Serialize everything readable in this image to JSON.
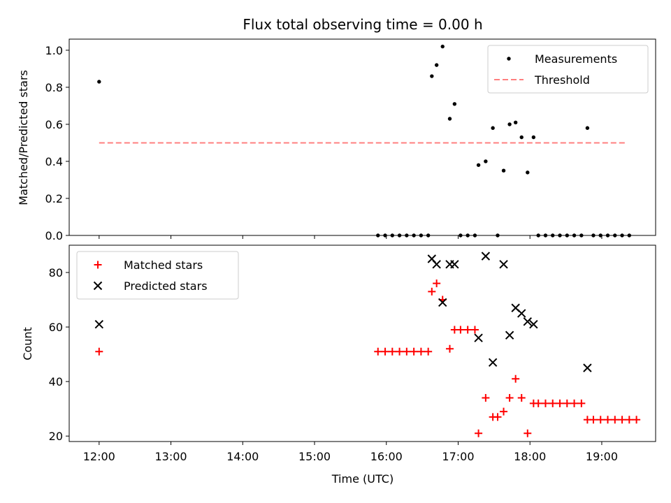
{
  "chart_data": [
    {
      "type": "scatter",
      "title": "Flux total observing time = 0.00 h",
      "xlabel": "",
      "ylabel": "Matched/Predicted stars",
      "ylim": [
        0,
        1.06
      ],
      "yticks": [
        0.0,
        0.2,
        0.4,
        0.6,
        0.8,
        1.0
      ],
      "ytick_labels": [
        "0.0",
        "0.2",
        "0.4",
        "0.6",
        "0.8",
        "1.0"
      ],
      "legend_placement": "top-right",
      "series": [
        {
          "name": "Measurements",
          "marker": "dot",
          "color": "#000000",
          "points": [
            [
              "12:00",
              0.83
            ],
            [
              "15:53",
              0.0
            ],
            [
              "15:59",
              0.0
            ],
            [
              "16:05",
              0.0
            ],
            [
              "16:11",
              0.0
            ],
            [
              "16:17",
              0.0
            ],
            [
              "16:23",
              0.0
            ],
            [
              "16:29",
              0.0
            ],
            [
              "16:35",
              0.0
            ],
            [
              "16:38",
              0.86
            ],
            [
              "16:42",
              0.92
            ],
            [
              "16:47",
              1.02
            ],
            [
              "16:53",
              0.63
            ],
            [
              "16:57",
              0.71
            ],
            [
              "17:02",
              0.0
            ],
            [
              "17:08",
              0.0
            ],
            [
              "17:14",
              0.0
            ],
            [
              "17:17",
              0.38
            ],
            [
              "17:23",
              0.4
            ],
            [
              "17:29",
              0.58
            ],
            [
              "17:33",
              0.0
            ],
            [
              "17:38",
              0.35
            ],
            [
              "17:43",
              0.6
            ],
            [
              "17:48",
              0.61
            ],
            [
              "17:53",
              0.53
            ],
            [
              "17:58",
              0.34
            ],
            [
              "18:03",
              0.53
            ],
            [
              "18:07",
              0.0
            ],
            [
              "18:13",
              0.0
            ],
            [
              "18:19",
              0.0
            ],
            [
              "18:25",
              0.0
            ],
            [
              "18:31",
              0.0
            ],
            [
              "18:37",
              0.0
            ],
            [
              "18:43",
              0.0
            ],
            [
              "18:48",
              0.58
            ],
            [
              "18:53",
              0.0
            ],
            [
              "18:59",
              0.0
            ],
            [
              "19:05",
              0.0
            ],
            [
              "19:11",
              0.0
            ],
            [
              "19:17",
              0.0
            ],
            [
              "19:23",
              0.0
            ]
          ]
        },
        {
          "name": "Threshold",
          "marker": "dashed-line",
          "color": "#ff7f7f",
          "points": [
            [
              "12:00",
              0.5
            ],
            [
              "19:20",
              0.5
            ]
          ]
        }
      ]
    },
    {
      "type": "scatter",
      "title": "",
      "xlabel": "Time (UTC)",
      "ylabel": "Count",
      "xlim": [
        "11:35",
        "19:45"
      ],
      "xticks": [
        "12:00",
        "13:00",
        "14:00",
        "15:00",
        "16:00",
        "17:00",
        "18:00",
        "19:00"
      ],
      "ylim": [
        18,
        90
      ],
      "yticks": [
        20,
        40,
        60,
        80
      ],
      "ytick_labels": [
        "20",
        "40",
        "60",
        "80"
      ],
      "legend_placement": "top-left",
      "series": [
        {
          "name": "Matched stars",
          "marker": "plus",
          "color": "#ff0000",
          "points": [
            [
              "12:00",
              51
            ],
            [
              "15:53",
              51
            ],
            [
              "15:59",
              51
            ],
            [
              "16:05",
              51
            ],
            [
              "16:11",
              51
            ],
            [
              "16:17",
              51
            ],
            [
              "16:23",
              51
            ],
            [
              "16:29",
              51
            ],
            [
              "16:35",
              51
            ],
            [
              "16:38",
              73
            ],
            [
              "16:42",
              76
            ],
            [
              "16:47",
              70
            ],
            [
              "16:53",
              52
            ],
            [
              "16:57",
              59
            ],
            [
              "17:02",
              59
            ],
            [
              "17:08",
              59
            ],
            [
              "17:14",
              59
            ],
            [
              "17:17",
              21
            ],
            [
              "17:23",
              34
            ],
            [
              "17:29",
              27
            ],
            [
              "17:33",
              27
            ],
            [
              "17:38",
              29
            ],
            [
              "17:43",
              34
            ],
            [
              "17:48",
              41
            ],
            [
              "17:53",
              34
            ],
            [
              "17:58",
              21
            ],
            [
              "18:03",
              32
            ],
            [
              "18:07",
              32
            ],
            [
              "18:13",
              32
            ],
            [
              "18:19",
              32
            ],
            [
              "18:25",
              32
            ],
            [
              "18:31",
              32
            ],
            [
              "18:37",
              32
            ],
            [
              "18:43",
              32
            ],
            [
              "18:48",
              26
            ],
            [
              "18:53",
              26
            ],
            [
              "18:59",
              26
            ],
            [
              "19:05",
              26
            ],
            [
              "19:11",
              26
            ],
            [
              "19:17",
              26
            ],
            [
              "19:23",
              26
            ],
            [
              "19:29",
              26
            ]
          ]
        },
        {
          "name": "Predicted stars",
          "marker": "x",
          "color": "#000000",
          "points": [
            [
              "12:00",
              61
            ],
            [
              "16:38",
              85
            ],
            [
              "16:42",
              83
            ],
            [
              "16:47",
              69
            ],
            [
              "16:53",
              83
            ],
            [
              "16:57",
              83
            ],
            [
              "17:17",
              56
            ],
            [
              "17:23",
              86
            ],
            [
              "17:29",
              47
            ],
            [
              "17:38",
              83
            ],
            [
              "17:43",
              57
            ],
            [
              "17:48",
              67
            ],
            [
              "17:53",
              65
            ],
            [
              "17:58",
              62
            ],
            [
              "18:03",
              61
            ],
            [
              "18:48",
              45
            ]
          ]
        }
      ]
    }
  ]
}
